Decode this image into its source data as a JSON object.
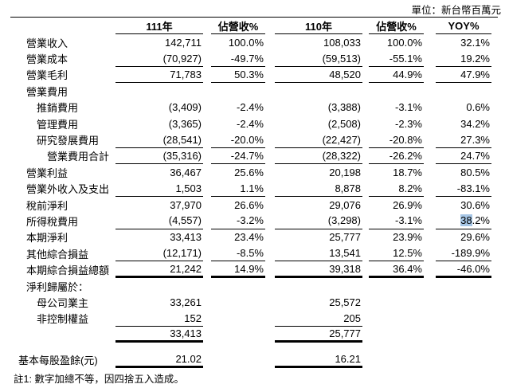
{
  "unit_label": "單位：新台幣百萬元",
  "header": {
    "col1": "111年",
    "col2": "佔營收%",
    "col3": "110年",
    "col4": "佔營收%",
    "col5": "YOY%"
  },
  "rows": [
    {
      "label": "營業收入",
      "indent": 0,
      "c1": "142,711",
      "c2": "100.0%",
      "c3": "108,033",
      "c4": "100.0%",
      "c5": "32.1%",
      "rule": "none"
    },
    {
      "label": "營業成本",
      "indent": 0,
      "c1": "(70,927)",
      "c2": "-49.7%",
      "c3": "(59,513)",
      "c4": "-55.1%",
      "c5": "19.2%",
      "rule": "thin-all"
    },
    {
      "label": "營業毛利",
      "indent": 0,
      "c1": "71,783",
      "c2": "50.3%",
      "c3": "48,520",
      "c4": "44.9%",
      "c5": "47.9%",
      "rule": "thin-all"
    },
    {
      "label": "營業費用",
      "indent": 0,
      "rule": "none"
    },
    {
      "label": "推銷費用",
      "indent": 1,
      "c1": "(3,409)",
      "c2": "-2.4%",
      "c3": "(3,388)",
      "c4": "-3.1%",
      "c5": "0.6%",
      "rule": "none"
    },
    {
      "label": "管理費用",
      "indent": 1,
      "c1": "(3,365)",
      "c2": "-2.4%",
      "c3": "(2,508)",
      "c4": "-2.3%",
      "c5": "34.2%",
      "rule": "none"
    },
    {
      "label": "研究發展費用",
      "indent": 1,
      "c1": "(28,541)",
      "c2": "-20.0%",
      "c3": "(22,427)",
      "c4": "-20.8%",
      "c5": "27.3%",
      "rule": "thin-all"
    },
    {
      "label": "營業費用合計",
      "indent": 2,
      "c1": "(35,316)",
      "c2": "-24.7%",
      "c3": "(28,322)",
      "c4": "-26.2%",
      "c5": "24.7%",
      "rule": "thin-all"
    },
    {
      "label": "營業利益",
      "indent": 0,
      "c1": "36,467",
      "c2": "25.6%",
      "c3": "20,198",
      "c4": "18.7%",
      "c5": "80.5%",
      "rule": "none"
    },
    {
      "label": "營業外收入及支出",
      "indent": 0,
      "c1": "1,503",
      "c2": "1.1%",
      "c3": "8,878",
      "c4": "8.2%",
      "c5": "-83.1%",
      "rule": "thin-all"
    },
    {
      "label": "稅前淨利",
      "indent": 0,
      "c1": "37,970",
      "c2": "26.6%",
      "c3": "29,076",
      "c4": "26.9%",
      "c5": "30.6%",
      "rule": "none"
    },
    {
      "label": "所得稅費用",
      "indent": 0,
      "c1": "(4,557)",
      "c2": "-3.2%",
      "c3": "(3,298)",
      "c4": "-3.1%",
      "c5": "38.2%",
      "c5_highlight": "38",
      "rule": "thin-all"
    },
    {
      "label": "本期淨利",
      "indent": 0,
      "c1": "33,413",
      "c2": "23.4%",
      "c3": "25,777",
      "c4": "23.9%",
      "c5": "29.6%",
      "rule": "none"
    },
    {
      "label": "其他綜合損益",
      "indent": 0,
      "c1": "(12,171)",
      "c2": "-8.5%",
      "c3": "13,541",
      "c4": "12.5%",
      "c5": "-189.9%",
      "rule": "thin-all"
    },
    {
      "label": "本期綜合損益總額",
      "indent": 0,
      "c1": "21,242",
      "c2": "14.9%",
      "c3": "39,318",
      "c4": "36.4%",
      "c5": "-46.0%",
      "rule": "thick-all"
    },
    {
      "label": "淨利歸屬於：",
      "indent": 0,
      "rule": "none"
    },
    {
      "label": "母公司業主",
      "indent": 1,
      "c1": "33,261",
      "c3": "25,572",
      "rule": "none"
    },
    {
      "label": "非控制權益",
      "indent": 1,
      "c1": "152",
      "c3": "205",
      "rule": "thin-13"
    },
    {
      "label": "",
      "indent": 0,
      "c1": "33,413",
      "c3": "25,777",
      "rule": "thick-13"
    },
    {
      "spacer": true
    },
    {
      "label": "基本每股盈餘(元)",
      "indent": 0,
      "eps": true,
      "c1": "21.02",
      "c3": "16.21",
      "rule": "thick-13"
    }
  ],
  "footnote": "註1: 數字加總不等，因四捨五入造成。",
  "colors": {
    "selection_highlight": "#a6c6e6",
    "text": "#000000",
    "background": "#ffffff"
  }
}
